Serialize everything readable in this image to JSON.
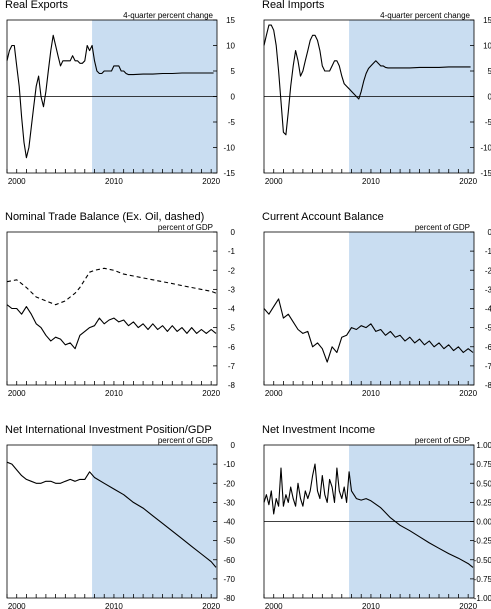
{
  "chart_data": [
    {
      "type": "line",
      "title": "Real Exports",
      "unit": "4-quarter percent change",
      "ylim": [
        -15,
        15
      ],
      "yticks": [
        -15,
        -10,
        -5,
        0,
        5,
        10,
        15
      ],
      "xlim": [
        2000,
        2020
      ],
      "xticks": [
        2000,
        2010,
        2020
      ],
      "shade_start": 2007.75,
      "series": [
        {
          "style": "solid",
          "x": [
            1999.0,
            1999.25,
            1999.5,
            1999.75,
            2000.0,
            2000.25,
            2000.5,
            2000.75,
            2001.0,
            2001.25,
            2001.5,
            2001.75,
            2002.0,
            2002.25,
            2002.5,
            2002.75,
            2003.0,
            2003.25,
            2003.5,
            2003.75,
            2004.0,
            2004.25,
            2004.5,
            2004.75,
            2005.0,
            2005.25,
            2005.5,
            2005.75,
            2006.0,
            2006.25,
            2006.5,
            2006.75,
            2007.0,
            2007.25,
            2007.5,
            2007.75,
            2008.0,
            2008.25,
            2008.5,
            2008.75,
            2009.0,
            2009.25,
            2009.5,
            2009.75,
            2010.0,
            2010.25,
            2010.5,
            2010.75,
            2011.0,
            2011.25,
            2011.5,
            2011.75,
            2012,
            2013,
            2014,
            2015,
            2016,
            2017,
            2018,
            2019,
            2020,
            2020.25
          ],
          "values": [
            7,
            9,
            10,
            10,
            6,
            2,
            -4,
            -9,
            -12,
            -10,
            -6,
            -2,
            2,
            4,
            0,
            -2,
            1,
            5,
            9,
            12,
            10,
            8,
            6,
            7,
            7,
            7,
            7,
            8,
            7,
            7,
            6.5,
            6.5,
            7,
            10,
            9,
            10,
            7,
            5,
            4.5,
            4.5,
            5,
            5,
            5,
            5,
            6,
            6,
            6,
            5,
            5,
            4.5,
            4.3,
            4.3,
            4.3,
            4.4,
            4.4,
            4.5,
            4.5,
            4.6,
            4.6,
            4.6,
            4.6,
            4.6
          ]
        }
      ]
    },
    {
      "type": "line",
      "title": "Real Imports",
      "unit": "4-quarter percent change",
      "ylim": [
        -15,
        15
      ],
      "yticks": [
        -15,
        -10,
        -5,
        0,
        5,
        10,
        15
      ],
      "xlim": [
        2000,
        2020
      ],
      "xticks": [
        2000,
        2010,
        2020
      ],
      "shade_start": 2007.75,
      "series": [
        {
          "style": "solid",
          "x": [
            1999.0,
            1999.25,
            1999.5,
            1999.75,
            2000.0,
            2000.25,
            2000.5,
            2000.75,
            2001.0,
            2001.25,
            2001.5,
            2001.75,
            2002.0,
            2002.25,
            2002.5,
            2002.75,
            2003.0,
            2003.25,
            2003.5,
            2003.75,
            2004.0,
            2004.25,
            2004.5,
            2004.75,
            2005.0,
            2005.25,
            2005.5,
            2005.75,
            2006.0,
            2006.25,
            2006.5,
            2006.75,
            2007.0,
            2007.25,
            2007.5,
            2007.75,
            2008.0,
            2008.25,
            2008.5,
            2008.75,
            2009.0,
            2009.25,
            2009.5,
            2009.75,
            2010.0,
            2010.25,
            2010.5,
            2010.75,
            2011.0,
            2011.25,
            2011.5,
            2011.75,
            2012,
            2013,
            2014,
            2015,
            2016,
            2017,
            2018,
            2019,
            2020,
            2020.25
          ],
          "values": [
            10,
            12,
            14,
            14,
            13,
            10,
            5,
            -1,
            -7,
            -7.5,
            -3,
            2,
            6,
            9,
            7,
            4,
            5,
            7,
            9,
            11,
            12,
            12,
            11,
            9,
            6,
            5,
            5,
            5,
            6,
            7,
            7,
            6,
            4,
            2.5,
            2,
            1.5,
            1,
            0.5,
            0,
            -0.5,
            1,
            3,
            4.5,
            5.5,
            6,
            6.5,
            7,
            6.5,
            6,
            6,
            5.7,
            5.6,
            5.6,
            5.6,
            5.6,
            5.7,
            5.7,
            5.7,
            5.8,
            5.8,
            5.8,
            5.8
          ]
        }
      ]
    },
    {
      "type": "line",
      "title": "Nominal Trade Balance (Ex. Oil, dashed)",
      "unit": "percent of GDP",
      "ylim": [
        -8,
        0
      ],
      "yticks": [
        -8,
        -7,
        -6,
        -5,
        -4,
        -3,
        -2,
        -1,
        0
      ],
      "xlim": [
        2000,
        2020
      ],
      "xticks": [
        2000,
        2010,
        2020
      ],
      "shade_start": null,
      "series": [
        {
          "style": "solid",
          "x": [
            1999.0,
            1999.5,
            2000.0,
            2000.5,
            2001.0,
            2001.5,
            2002.0,
            2002.5,
            2003.0,
            2003.5,
            2004.0,
            2004.5,
            2005.0,
            2005.5,
            2006.0,
            2006.5,
            2007.0,
            2007.5,
            2008.0,
            2008.5,
            2009.0,
            2009.5,
            2010.0,
            2010.5,
            2011.0,
            2011.5,
            2012.0,
            2012.5,
            2013.0,
            2013.5,
            2014.0,
            2014.5,
            2015.0,
            2015.5,
            2016.0,
            2016.5,
            2017.0,
            2017.5,
            2018.0,
            2018.5,
            2019.0,
            2019.5,
            2020.0,
            2020.5
          ],
          "values": [
            -3.8,
            -4.0,
            -4.0,
            -4.3,
            -3.9,
            -4.3,
            -4.8,
            -5.0,
            -5.4,
            -5.7,
            -5.5,
            -5.6,
            -5.9,
            -5.8,
            -6.1,
            -5.4,
            -5.2,
            -5.0,
            -4.9,
            -4.5,
            -4.8,
            -4.6,
            -4.5,
            -4.7,
            -4.6,
            -4.9,
            -4.7,
            -5.0,
            -4.8,
            -5.1,
            -4.8,
            -5.1,
            -4.9,
            -5.2,
            -4.9,
            -5.2,
            -5.0,
            -5.3,
            -5.0,
            -5.3,
            -5.1,
            -5.3,
            -5.1,
            -5.3
          ]
        },
        {
          "style": "dashed",
          "x": [
            1999.0,
            2000.0,
            2001.0,
            2002.0,
            2003.0,
            2004.0,
            2004.5,
            2005.0,
            2005.5,
            2006.0,
            2006.5,
            2007.0,
            2007.5,
            2008.0,
            2009.0,
            2010.0,
            2011.0,
            2012.0,
            2013.0,
            2014.0,
            2015.0,
            2016.0,
            2017.0,
            2018.0,
            2019.0,
            2020.0,
            2020.5
          ],
          "values": [
            -2.6,
            -2.5,
            -2.9,
            -3.4,
            -3.6,
            -3.8,
            -3.7,
            -3.6,
            -3.4,
            -3.2,
            -2.9,
            -2.5,
            -2.1,
            -2.0,
            -1.9,
            -2.0,
            -2.2,
            -2.3,
            -2.4,
            -2.5,
            -2.6,
            -2.7,
            -2.8,
            -2.9,
            -3.0,
            -3.1,
            -3.2
          ]
        }
      ]
    },
    {
      "type": "line",
      "title": "Current Account Balance",
      "unit": "percent of GDP",
      "ylim": [
        -8,
        0
      ],
      "yticks": [
        -8,
        -7,
        -6,
        -5,
        -4,
        -3,
        -2,
        -1,
        0
      ],
      "xlim": [
        2000,
        2020
      ],
      "xticks": [
        2000,
        2010,
        2020
      ],
      "shade_start": 2007.75,
      "series": [
        {
          "style": "solid",
          "x": [
            1999.0,
            1999.5,
            2000.0,
            2000.5,
            2001.0,
            2001.5,
            2002.0,
            2002.5,
            2003.0,
            2003.5,
            2004.0,
            2004.5,
            2005.0,
            2005.5,
            2006.0,
            2006.5,
            2007.0,
            2007.5,
            2008.0,
            2008.5,
            2009.0,
            2009.5,
            2010.0,
            2010.5,
            2011.0,
            2011.5,
            2012.0,
            2012.5,
            2013.0,
            2013.5,
            2014.0,
            2014.5,
            2015.0,
            2015.5,
            2016.0,
            2016.5,
            2017.0,
            2017.5,
            2018.0,
            2018.5,
            2019.0,
            2019.5,
            2020.0,
            2020.5
          ],
          "values": [
            -4.0,
            -4.3,
            -3.9,
            -3.5,
            -4.5,
            -4.3,
            -4.7,
            -5.1,
            -5.3,
            -5.2,
            -6.0,
            -5.8,
            -6.1,
            -6.8,
            -6.0,
            -6.3,
            -5.5,
            -5.4,
            -5.0,
            -5.1,
            -4.9,
            -5.0,
            -4.8,
            -5.2,
            -5.1,
            -5.4,
            -5.2,
            -5.5,
            -5.4,
            -5.7,
            -5.5,
            -5.8,
            -5.6,
            -5.9,
            -5.7,
            -6.0,
            -5.8,
            -6.1,
            -5.9,
            -6.2,
            -6.0,
            -6.3,
            -6.1,
            -6.3
          ]
        }
      ]
    },
    {
      "type": "line",
      "title": "Net International Investment Position/GDP",
      "unit": "percent of GDP",
      "ylim": [
        -80,
        0
      ],
      "yticks": [
        -80,
        -70,
        -60,
        -50,
        -40,
        -30,
        -20,
        -10,
        0
      ],
      "xlim": [
        2000,
        2020
      ],
      "xticks": [
        2000,
        2010,
        2020
      ],
      "shade_start": 2007.75,
      "series": [
        {
          "style": "solid",
          "x": [
            1999.0,
            1999.5,
            2000.0,
            2000.5,
            2001.0,
            2001.5,
            2002.0,
            2002.5,
            2003.0,
            2003.5,
            2004.0,
            2004.5,
            2005.0,
            2005.5,
            2006.0,
            2006.5,
            2007.0,
            2007.5,
            2008.0,
            2009,
            2010,
            2011,
            2012,
            2013,
            2014,
            2015,
            2016,
            2017,
            2018,
            2019,
            2020,
            2020.5
          ],
          "values": [
            -9,
            -10,
            -13,
            -16,
            -18,
            -19,
            -20,
            -20,
            -19,
            -19,
            -20,
            -20,
            -19,
            -18,
            -19,
            -18,
            -18,
            -14,
            -17,
            -20,
            -23,
            -26,
            -30,
            -33,
            -37,
            -41,
            -45,
            -49,
            -53,
            -57,
            -61,
            -64
          ]
        }
      ]
    },
    {
      "type": "line",
      "title": "Net Investment Income",
      "unit": "percent of GDP",
      "ylim": [
        -1.0,
        1.0
      ],
      "yticks": [
        -1.0,
        -0.75,
        -0.5,
        -0.25,
        0.0,
        0.25,
        0.5,
        0.75,
        1.0
      ],
      "ytick_labels": [
        "-1.00",
        "-0.75",
        "-0.50",
        "-0.25",
        "0.00",
        "0.25",
        "0.50",
        "0.75",
        "1.00"
      ],
      "xlim": [
        2000,
        2020
      ],
      "xticks": [
        2000,
        2010,
        2020
      ],
      "shade_start": 2007.75,
      "series": [
        {
          "style": "solid",
          "x": [
            1999.0,
            1999.25,
            1999.5,
            1999.75,
            2000.0,
            2000.25,
            2000.5,
            2000.75,
            2001.0,
            2001.25,
            2001.5,
            2001.75,
            2002.0,
            2002.25,
            2002.5,
            2002.75,
            2003.0,
            2003.25,
            2003.5,
            2003.75,
            2004.0,
            2004.25,
            2004.5,
            2004.75,
            2005.0,
            2005.25,
            2005.5,
            2005.75,
            2006.0,
            2006.25,
            2006.5,
            2006.75,
            2007.0,
            2007.25,
            2007.5,
            2007.75,
            2008.0,
            2008.5,
            2009.0,
            2009.5,
            2010.0,
            2011,
            2012,
            2013,
            2014,
            2015,
            2016,
            2017,
            2018,
            2019,
            2020,
            2020.5
          ],
          "values": [
            0.25,
            0.35,
            0.22,
            0.4,
            0.1,
            0.3,
            0.2,
            0.7,
            0.2,
            0.35,
            0.25,
            0.45,
            0.3,
            0.2,
            0.5,
            0.3,
            0.2,
            0.4,
            0.3,
            0.4,
            0.6,
            0.75,
            0.4,
            0.3,
            0.6,
            0.35,
            0.25,
            0.55,
            0.45,
            0.25,
            0.7,
            0.4,
            0.3,
            0.45,
            0.25,
            0.65,
            0.4,
            0.3,
            0.28,
            0.3,
            0.27,
            0.18,
            0.05,
            -0.05,
            -0.12,
            -0.2,
            -0.28,
            -0.35,
            -0.42,
            -0.48,
            -0.55,
            -0.6
          ]
        }
      ]
    }
  ]
}
